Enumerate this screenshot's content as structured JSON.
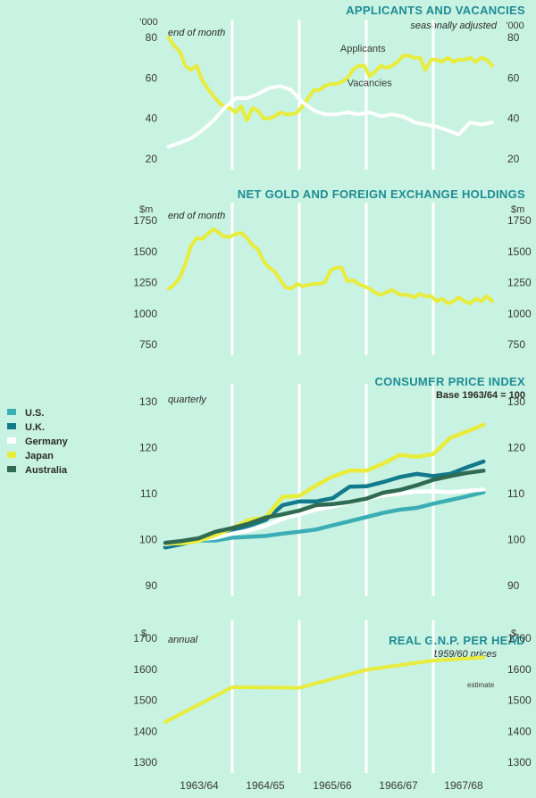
{
  "x_axis": {
    "labels": [
      "1963/64",
      "1964/65",
      "1965/66",
      "1966/67",
      "1967/68"
    ],
    "range": [
      1963.5,
      1968.5
    ],
    "year_boundaries": [
      1964.5,
      1965.5,
      1966.5,
      1967.5
    ]
  },
  "colors": {
    "background": "#c8f2e2",
    "title": "#1f8c93",
    "applicants": "#e8ec3c",
    "vacancies": "#ffffff",
    "us": "#3aaeb4",
    "uk": "#127a8c",
    "germany": "#ffffff",
    "japan": "#e8ec3c",
    "australia": "#2f6a52"
  },
  "legend": [
    {
      "name": "U.S.",
      "color": "#3aaeb4"
    },
    {
      "name": "U.K.",
      "color": "#127a8c"
    },
    {
      "name": "Germany",
      "color": "#ffffff"
    },
    {
      "name": "Japan",
      "color": "#e8ec3c"
    },
    {
      "name": "Australia",
      "color": "#2f6a52"
    }
  ],
  "chart_data": [
    {
      "type": "line",
      "title": "APPLICANTS AND VACANCIES",
      "subtitle": "seasonally adjusted",
      "note": "end of month",
      "unit_left": "’000",
      "unit_right": "’000",
      "yticks": [
        20,
        40,
        60,
        80
      ],
      "ylim": [
        20,
        82
      ],
      "series": [
        {
          "name": "Applicants",
          "color_key": "applicants",
          "x": [
            1963.55,
            1963.63,
            1963.72,
            1963.8,
            1963.88,
            1963.97,
            1964.05,
            1964.13,
            1964.22,
            1964.3,
            1964.38,
            1964.47,
            1964.55,
            1964.63,
            1964.72,
            1964.8,
            1964.88,
            1964.97,
            1965.05,
            1965.13,
            1965.22,
            1965.3,
            1965.38,
            1965.47,
            1965.55,
            1965.63,
            1965.72,
            1965.8,
            1965.88,
            1965.97,
            1966.05,
            1966.13,
            1966.22,
            1966.3,
            1966.38,
            1966.47,
            1966.55,
            1966.63,
            1966.72,
            1966.8,
            1966.88,
            1966.97,
            1967.05,
            1967.13,
            1967.22,
            1967.3,
            1967.38,
            1967.47,
            1967.55,
            1967.63,
            1967.72,
            1967.8,
            1967.88,
            1967.97,
            1968.05,
            1968.13,
            1968.22,
            1968.3,
            1968.38
          ],
          "y": [
            80,
            76,
            73,
            66,
            64,
            66,
            59,
            55,
            51,
            48,
            46,
            45,
            43,
            46,
            39,
            45,
            44,
            40,
            40,
            41,
            43,
            42,
            42,
            43,
            46,
            50,
            54,
            54,
            56,
            57,
            57,
            58,
            60,
            64,
            66,
            66,
            61,
            63,
            66,
            65,
            66,
            68,
            71,
            71,
            70,
            70,
            64,
            69,
            69,
            68,
            70,
            68,
            69,
            69,
            70,
            68,
            70,
            69,
            66
          ]
        },
        {
          "name": "Vacancies",
          "color_key": "vacancies",
          "x": [
            1963.55,
            1963.72,
            1963.88,
            1964.05,
            1964.22,
            1964.38,
            1964.55,
            1964.72,
            1964.88,
            1965.05,
            1965.22,
            1965.38,
            1965.55,
            1965.72,
            1965.88,
            1966.05,
            1966.22,
            1966.38,
            1966.55,
            1966.72,
            1966.88,
            1967.05,
            1967.22,
            1967.38,
            1967.55,
            1967.72,
            1967.88,
            1968.05,
            1968.22,
            1968.38
          ],
          "y": [
            26,
            28,
            30,
            34,
            39,
            45,
            50,
            50,
            52,
            55,
            56,
            54,
            48,
            44,
            42,
            42,
            43,
            42,
            43,
            41,
            42,
            41,
            38,
            37,
            36,
            34,
            32,
            38,
            37,
            38
          ]
        }
      ],
      "labels": [
        {
          "text": "Applicants",
          "x": 1966.45,
          "y": 73
        },
        {
          "text": "Vacancies",
          "x": 1966.55,
          "y": 56
        }
      ]
    },
    {
      "type": "line",
      "title": "NET GOLD AND FOREIGN EXCHANGE HOLDINGS",
      "note": "end of month",
      "unit_left": "$m",
      "unit_right": "$m",
      "yticks": [
        750,
        1000,
        1250,
        1500,
        1750
      ],
      "ylim": [
        750,
        1800
      ],
      "series": [
        {
          "name": "",
          "color_key": "applicants",
          "x": [
            1963.55,
            1963.63,
            1963.72,
            1963.8,
            1963.88,
            1963.97,
            1964.05,
            1964.13,
            1964.22,
            1964.3,
            1964.38,
            1964.47,
            1964.55,
            1964.63,
            1964.72,
            1964.8,
            1964.88,
            1964.97,
            1965.05,
            1965.13,
            1965.22,
            1965.3,
            1965.38,
            1965.47,
            1965.55,
            1965.63,
            1965.72,
            1965.8,
            1965.88,
            1965.97,
            1966.05,
            1966.13,
            1966.22,
            1966.3,
            1966.38,
            1966.47,
            1966.55,
            1966.63,
            1966.72,
            1966.8,
            1966.88,
            1966.97,
            1967.05,
            1967.13,
            1967.22,
            1967.3,
            1967.38,
            1967.47,
            1967.55,
            1967.63,
            1967.72,
            1967.8,
            1967.88,
            1967.97,
            1968.05,
            1968.13,
            1968.22,
            1968.3,
            1968.38
          ],
          "y": [
            1200,
            1230,
            1290,
            1400,
            1540,
            1610,
            1600,
            1640,
            1680,
            1650,
            1620,
            1620,
            1640,
            1650,
            1610,
            1550,
            1520,
            1420,
            1370,
            1340,
            1270,
            1210,
            1200,
            1240,
            1220,
            1230,
            1240,
            1240,
            1250,
            1350,
            1370,
            1370,
            1260,
            1270,
            1240,
            1220,
            1200,
            1170,
            1150,
            1170,
            1190,
            1160,
            1150,
            1150,
            1130,
            1160,
            1140,
            1140,
            1100,
            1120,
            1080,
            1100,
            1130,
            1100,
            1080,
            1120,
            1100,
            1140,
            1100
          ]
        }
      ]
    },
    {
      "type": "line",
      "title": "CONSUMER PRICE INDEX",
      "subtitle": "Base 1963/64 = 100",
      "note": "quarterly",
      "yticks": [
        90,
        100,
        110,
        120,
        130
      ],
      "ylim": [
        90,
        130
      ],
      "series": [
        {
          "name": "U.S.",
          "color_key": "us",
          "x": [
            1963.5,
            1963.75,
            1964,
            1964.25,
            1964.5,
            1964.75,
            1965,
            1965.25,
            1965.5,
            1965.75,
            1966,
            1966.25,
            1966.5,
            1966.75,
            1967,
            1967.25,
            1967.5,
            1967.75,
            1968,
            1968.25
          ],
          "y": [
            98.6,
            99.4,
            99.8,
            99.8,
            100.4,
            100.6,
            100.8,
            101.3,
            101.7,
            102.2,
            103.1,
            104,
            104.9,
            105.8,
            106.5,
            106.9,
            107.8,
            108.6,
            109.4,
            110.3
          ]
        },
        {
          "name": "U.K.",
          "color_key": "uk",
          "x": [
            1963.5,
            1963.75,
            1964,
            1964.25,
            1964.5,
            1964.75,
            1965,
            1965.25,
            1965.5,
            1965.75,
            1966,
            1966.25,
            1966.5,
            1966.75,
            1967,
            1967.25,
            1967.5,
            1967.75,
            1968,
            1968.25
          ],
          "y": [
            98.3,
            99,
            100,
            101,
            102,
            103,
            104.3,
            107.5,
            108.3,
            108.3,
            109,
            111.5,
            111.6,
            112.5,
            113.6,
            114.3,
            113.8,
            114.3,
            115.7,
            117
          ]
        },
        {
          "name": "Germany",
          "color_key": "germany",
          "x": [
            1963.5,
            1963.75,
            1964,
            1964.25,
            1964.5,
            1964.75,
            1965,
            1965.25,
            1965.5,
            1965.75,
            1966,
            1966.25,
            1966.5,
            1966.75,
            1967,
            1967.25,
            1967.5,
            1967.75,
            1968,
            1968.25
          ],
          "y": [
            99,
            99.4,
            100,
            100.4,
            101.3,
            102,
            103,
            104.5,
            105.5,
            106.5,
            107.2,
            108,
            108.8,
            109.6,
            110,
            110.4,
            110.5,
            110.3,
            110.6,
            110.9
          ]
        },
        {
          "name": "Japan",
          "color_key": "japan",
          "x": [
            1963.5,
            1963.75,
            1964,
            1964.25,
            1964.5,
            1964.75,
            1965,
            1965.25,
            1965.5,
            1965.75,
            1966,
            1966.25,
            1966.5,
            1966.75,
            1967,
            1967.25,
            1967.5,
            1967.75,
            1968,
            1968.25
          ],
          "y": [
            99.2,
            99.2,
            99.7,
            101,
            102.5,
            104.3,
            104.8,
            109.3,
            109.5,
            111.8,
            113.7,
            115,
            115,
            116.5,
            118.4,
            118,
            118.6,
            122.1,
            123.5,
            125
          ]
        },
        {
          "name": "Australia",
          "color_key": "australia",
          "x": [
            1963.5,
            1963.75,
            1964,
            1964.25,
            1964.5,
            1964.75,
            1965,
            1965.25,
            1965.5,
            1965.75,
            1966,
            1966.25,
            1966.5,
            1966.75,
            1967,
            1967.25,
            1967.5,
            1967.75,
            1968,
            1968.25
          ],
          "y": [
            99.3,
            99.7,
            100.3,
            101.7,
            102.5,
            103.5,
            104.8,
            105.5,
            106.3,
            107.5,
            107.7,
            108.2,
            108.9,
            110.2,
            110.8,
            111.8,
            113,
            113.8,
            114.5,
            115
          ]
        }
      ]
    },
    {
      "type": "line",
      "title": "REAL G.N.P. PER HEAD",
      "subtitle": "1959/60 prices",
      "note": "annual",
      "unit_left": "$",
      "unit_right": "$",
      "yticks": [
        1300,
        1400,
        1500,
        1600,
        1700
      ],
      "ylim": [
        1300,
        1710
      ],
      "annotation": "estimate",
      "series": [
        {
          "name": "",
          "color_key": "applicants",
          "x": [
            1963.5,
            1964.5,
            1965.5,
            1966.5,
            1967.5,
            1968.25
          ],
          "y": [
            1430,
            1542,
            1540,
            1598,
            1628,
            1638
          ]
        }
      ]
    }
  ]
}
